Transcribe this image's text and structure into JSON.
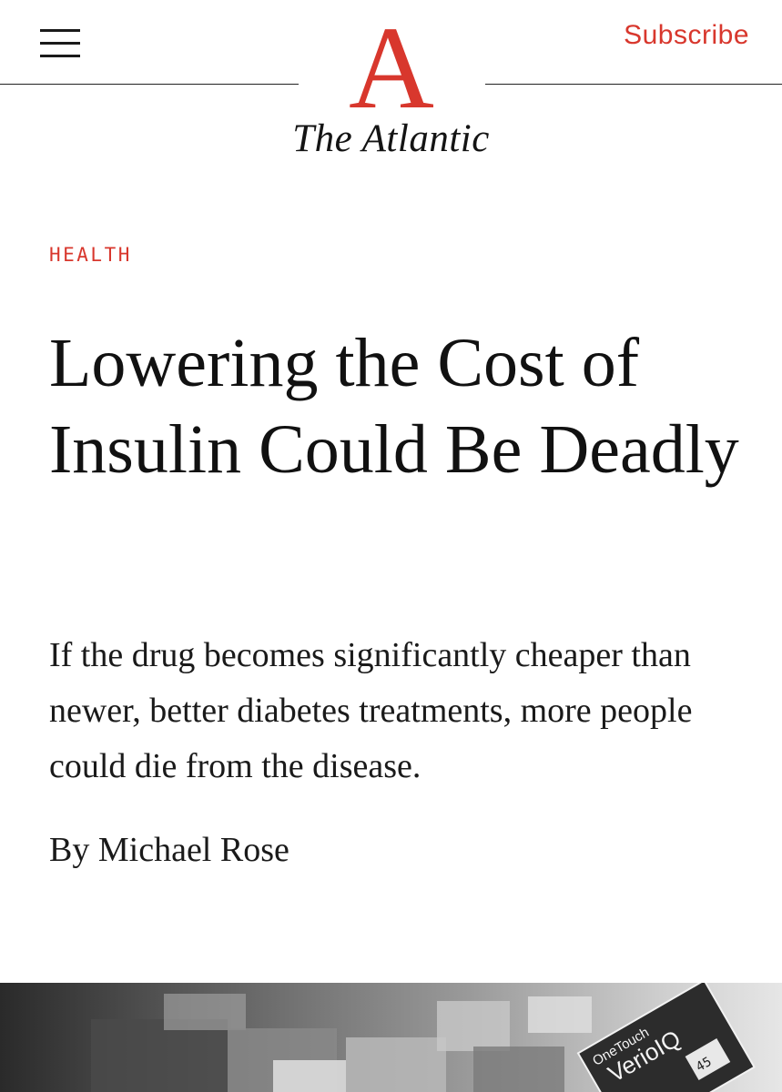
{
  "header": {
    "logo_letter": "A",
    "wordmark": "The Atlantic",
    "subscribe_label": "Subscribe",
    "accent_color": "#d8372d"
  },
  "article": {
    "section": "HEALTH",
    "title": "Lowering the Cost of Insulin Could Be Deadly",
    "dek": "If the drug becomes significantly cheaper than newer, better diabetes treatments, more people could die from the disease.",
    "byline_prefix": "By",
    "author": "Michael Rose"
  },
  "hero": {
    "package_brand": "OneTouch",
    "package_product": "VerioIQ",
    "meter_reading": "45"
  },
  "icons": {
    "menu": "hamburger-menu-icon",
    "logo": "atlantic-a-logo"
  }
}
